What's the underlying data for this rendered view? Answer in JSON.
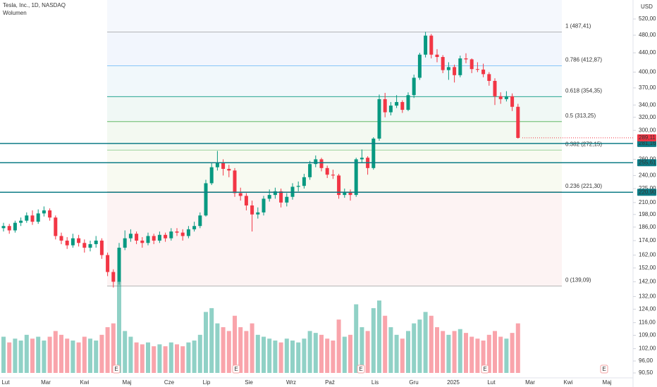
{
  "header": {
    "title": "Tesla, Inc., 1D, NASDAQ",
    "indicator": "Wolumen",
    "currency": "USD",
    "earnings_marker": "E"
  },
  "chart_data": {
    "type": "candlestick",
    "log_scale": true,
    "up_color": "#089981",
    "down_color": "#f23645",
    "ylim": [
      90.5,
      520
    ],
    "yticks": [
      {
        "value": 520,
        "label": "520,00"
      },
      {
        "value": 480,
        "label": "480,00"
      },
      {
        "value": 440,
        "label": "440,00"
      },
      {
        "value": 400,
        "label": "400,00"
      },
      {
        "value": 370,
        "label": "370,00"
      },
      {
        "value": 340,
        "label": "340,00"
      },
      {
        "value": 320,
        "label": "320,00"
      },
      {
        "value": 300,
        "label": "300,00"
      },
      {
        "value": 260,
        "label": "260,00"
      },
      {
        "value": 240,
        "label": "240,00"
      },
      {
        "value": 225,
        "label": "225,00"
      },
      {
        "value": 210,
        "label": "210,00"
      },
      {
        "value": 198,
        "label": "198,00"
      },
      {
        "value": 186,
        "label": "186,00"
      },
      {
        "value": 174,
        "label": "174,00"
      },
      {
        "value": 162,
        "label": "162,00"
      },
      {
        "value": 152,
        "label": "152,00"
      },
      {
        "value": 142,
        "label": "142,00"
      },
      {
        "value": 132,
        "label": "132,00"
      },
      {
        "value": 124,
        "label": "124,00"
      },
      {
        "value": 116,
        "label": "116,00"
      },
      {
        "value": 109,
        "label": "109,00"
      },
      {
        "value": 102,
        "label": "102,00"
      },
      {
        "value": 96,
        "label": "96,00"
      },
      {
        "value": 90.5,
        "label": "90,50"
      }
    ],
    "x_labels": [
      "Lut",
      "Mar",
      "Kwi",
      "Maj",
      "Cze",
      "Lip",
      "Sie",
      "Wrz",
      "Paź",
      "Lis",
      "Gru",
      "2025",
      "Lut",
      "Mar",
      "Kwi",
      "Maj"
    ],
    "candles": [
      [
        185,
        190,
        182,
        187
      ],
      [
        187,
        189,
        180,
        183
      ],
      [
        183,
        192,
        181,
        190
      ],
      [
        190,
        195,
        187,
        192
      ],
      [
        192,
        200,
        190,
        197
      ],
      [
        197,
        202,
        188,
        191
      ],
      [
        191,
        203,
        189,
        199
      ],
      [
        199,
        206,
        196,
        202
      ],
      [
        202,
        204,
        192,
        195
      ],
      [
        195,
        197,
        175,
        178
      ],
      [
        178,
        181,
        171,
        174
      ],
      [
        174,
        177,
        167,
        170
      ],
      [
        170,
        180,
        168,
        176
      ],
      [
        176,
        179,
        169,
        172
      ],
      [
        172,
        175,
        164,
        168
      ],
      [
        168,
        174,
        165,
        171
      ],
      [
        171,
        178,
        168,
        174
      ],
      [
        174,
        176,
        159,
        162
      ],
      [
        162,
        164,
        146,
        149
      ],
      [
        149,
        151,
        138,
        142
      ],
      [
        142,
        172,
        140,
        168
      ],
      [
        168,
        183,
        166,
        176
      ],
      [
        176,
        184,
        173,
        180
      ],
      [
        180,
        182,
        171,
        174
      ],
      [
        174,
        177,
        168,
        172
      ],
      [
        172,
        181,
        170,
        178
      ],
      [
        178,
        180,
        171,
        174
      ],
      [
        174,
        182,
        172,
        179
      ],
      [
        179,
        181,
        173,
        176
      ],
      [
        176,
        185,
        174,
        182
      ],
      [
        182,
        185,
        178,
        181
      ],
      [
        181,
        184,
        174,
        178
      ],
      [
        178,
        187,
        176,
        184
      ],
      [
        184,
        191,
        182,
        187
      ],
      [
        187,
        200,
        185,
        197
      ],
      [
        197,
        235,
        196,
        231
      ],
      [
        231,
        256,
        229,
        250
      ],
      [
        250,
        271,
        246,
        256
      ],
      [
        256,
        260,
        240,
        248
      ],
      [
        248,
        253,
        238,
        246
      ],
      [
        246,
        249,
        216,
        220
      ],
      [
        220,
        226,
        212,
        217
      ],
      [
        217,
        220,
        202,
        207
      ],
      [
        207,
        212,
        182,
        198
      ],
      [
        198,
        205,
        194,
        200
      ],
      [
        200,
        217,
        197,
        214
      ],
      [
        214,
        224,
        211,
        218
      ],
      [
        218,
        226,
        214,
        222
      ],
      [
        222,
        225,
        205,
        210
      ],
      [
        210,
        220,
        206,
        216
      ],
      [
        216,
        231,
        213,
        227
      ],
      [
        227,
        233,
        222,
        228
      ],
      [
        228,
        242,
        225,
        238
      ],
      [
        238,
        258,
        235,
        254
      ],
      [
        254,
        265,
        250,
        260
      ],
      [
        260,
        262,
        245,
        249
      ],
      [
        249,
        252,
        237,
        241
      ],
      [
        241,
        247,
        236,
        240
      ],
      [
        240,
        242,
        214,
        218
      ],
      [
        218,
        225,
        215,
        221
      ],
      [
        221,
        224,
        212,
        218
      ],
      [
        218,
        262,
        216,
        260
      ],
      [
        260,
        273,
        255,
        262
      ],
      [
        262,
        264,
        241,
        249
      ],
      [
        249,
        290,
        247,
        288
      ],
      [
        288,
        358,
        285,
        350
      ],
      [
        350,
        361,
        320,
        328
      ],
      [
        328,
        345,
        323,
        339
      ],
      [
        339,
        357,
        335,
        345
      ],
      [
        345,
        348,
        327,
        332
      ],
      [
        332,
        362,
        330,
        357
      ],
      [
        357,
        395,
        352,
        389
      ],
      [
        389,
        440,
        385,
        436
      ],
      [
        436,
        488,
        430,
        479
      ],
      [
        479,
        483,
        428,
        436
      ],
      [
        436,
        448,
        420,
        431
      ],
      [
        431,
        435,
        398,
        404
      ],
      [
        404,
        420,
        385,
        410
      ],
      [
        410,
        415,
        380,
        394
      ],
      [
        394,
        434,
        390,
        428
      ],
      [
        428,
        439,
        418,
        426
      ],
      [
        426,
        428,
        398,
        406
      ],
      [
        406,
        420,
        400,
        405
      ],
      [
        405,
        417,
        390,
        396
      ],
      [
        396,
        400,
        374,
        383
      ],
      [
        383,
        388,
        340,
        355
      ],
      [
        355,
        362,
        342,
        350
      ],
      [
        350,
        364,
        346,
        355
      ],
      [
        355,
        360,
        330,
        337
      ],
      [
        337,
        342,
        288,
        289
      ]
    ],
    "volume": [
      95,
      80,
      90,
      85,
      100,
      90,
      95,
      85,
      95,
      110,
      100,
      90,
      85,
      80,
      95,
      90,
      85,
      100,
      120,
      130,
      240,
      110,
      95,
      80,
      75,
      80,
      70,
      75,
      70,
      80,
      75,
      70,
      80,
      85,
      100,
      160,
      170,
      130,
      120,
      110,
      150,
      120,
      110,
      130,
      100,
      95,
      90,
      85,
      80,
      90,
      85,
      80,
      90,
      110,
      105,
      100,
      90,
      85,
      140,
      95,
      100,
      180,
      120,
      110,
      170,
      190,
      150,
      120,
      100,
      90,
      110,
      130,
      140,
      160,
      150,
      120,
      110,
      100,
      110,
      115,
      105,
      95,
      90,
      85,
      100,
      110,
      95,
      90,
      105,
      130
    ],
    "fib_levels": [
      {
        "label": "1 (487,41)",
        "value": 487.41,
        "color": "#9e9e9e"
      },
      {
        "label": "0.786 (412,87)",
        "value": 412.87,
        "color": "#64b5f6"
      },
      {
        "label": "0.618 (354,35)",
        "value": 354.35,
        "color": "#089981"
      },
      {
        "label": "0.5 (313,25)",
        "value": 313.25,
        "color": "#4caf50"
      },
      {
        "label": "0.382 (272,15)",
        "value": 272.15,
        "color": "#81c784"
      },
      {
        "label": "0.236 (221,30)",
        "value": 221.3,
        "color": "#f44336"
      },
      {
        "label": "0 (139,09)",
        "value": 139.09,
        "color": "#9e9e9e"
      }
    ],
    "horizontal_lines": [
      {
        "value": 281.16,
        "label": "281,16"
      },
      {
        "value": 255.61,
        "label": "255,61"
      },
      {
        "value": 220.9,
        "label": "220,90"
      }
    ],
    "horizontal_line_color": "#0e7c86",
    "last_price": {
      "value": 289.11,
      "label": "289,11"
    }
  }
}
